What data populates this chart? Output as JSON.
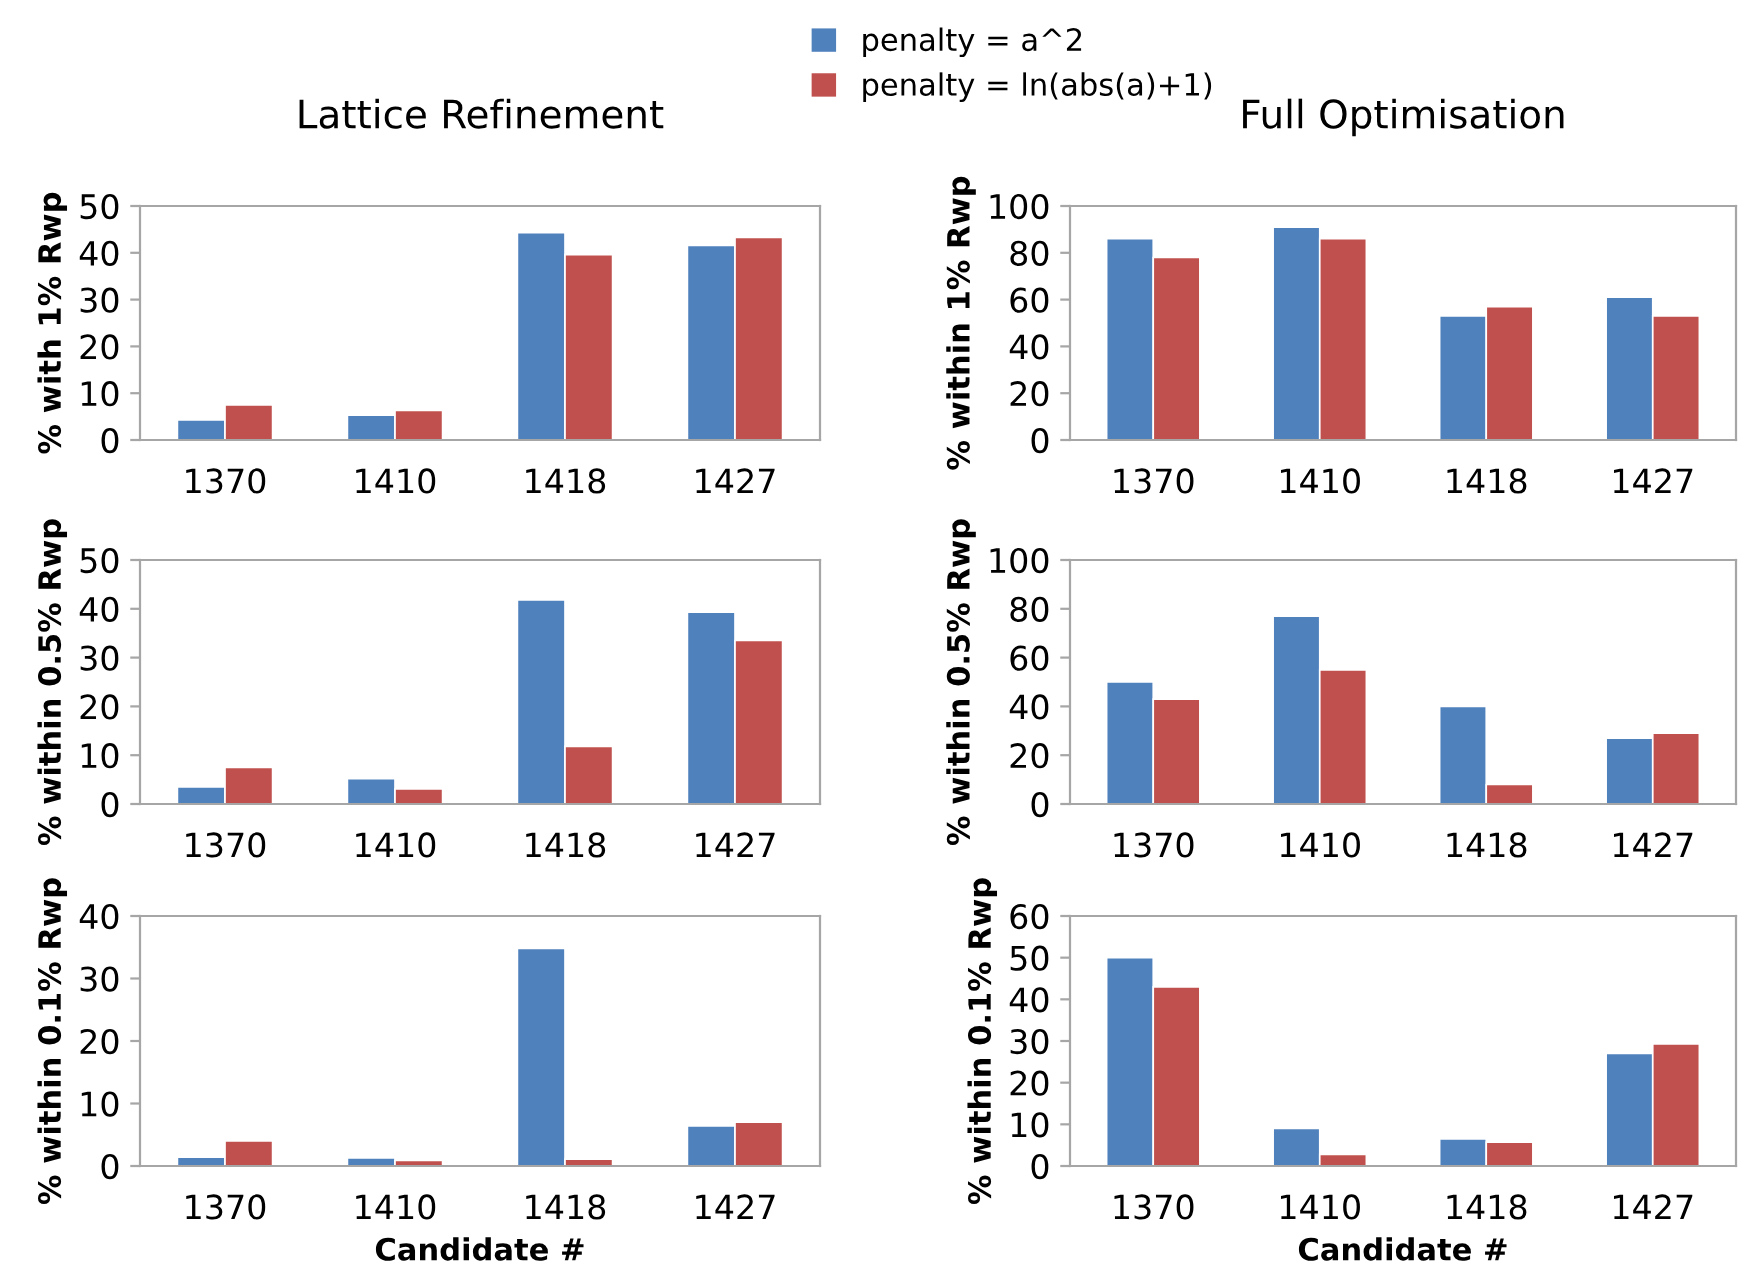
{
  "chart_data": [
    {
      "type": "bar",
      "title": "Lattice Refinement",
      "ylabel": "% with 1% Rwp",
      "categories": [
        "1370",
        "1410",
        "1418",
        "1427"
      ],
      "ylim": [
        0,
        50
      ],
      "yticks": [
        0,
        10,
        20,
        30,
        40,
        50
      ],
      "legend": "top",
      "grid": false,
      "series": [
        {
          "name": "penalty = a^2",
          "color": "#4f81bd",
          "values": [
            4.3,
            5.3,
            44.3,
            41.6
          ]
        },
        {
          "name": "penalty = ln(abs(a)+1)",
          "color": "#c0504d",
          "values": [
            7.5,
            6.3,
            39.6,
            43.3
          ]
        }
      ]
    },
    {
      "type": "bar",
      "title": "Full Optimisation",
      "ylabel": "% within 1% Rwp",
      "categories": [
        "1370",
        "1410",
        "1418",
        "1427"
      ],
      "ylim": [
        0,
        100
      ],
      "yticks": [
        0,
        20,
        40,
        60,
        80,
        100
      ],
      "grid": false,
      "series": [
        {
          "color": "#4f81bd",
          "values": [
            86,
            91,
            53,
            61
          ]
        },
        {
          "color": "#c0504d",
          "values": [
            78,
            86,
            57,
            53
          ]
        }
      ]
    },
    {
      "type": "bar",
      "ylabel": "% within 0.5% Rwp",
      "categories": [
        "1370",
        "1410",
        "1418",
        "1427"
      ],
      "ylim": [
        0,
        50
      ],
      "yticks": [
        0,
        10,
        20,
        30,
        40,
        50
      ],
      "grid": false,
      "series": [
        {
          "color": "#4f81bd",
          "values": [
            3.5,
            5.2,
            41.8,
            39.3
          ]
        },
        {
          "color": "#c0504d",
          "values": [
            7.5,
            3.1,
            11.8,
            33.5
          ]
        }
      ]
    },
    {
      "type": "bar",
      "ylabel": "% within 0.5% Rwp",
      "categories": [
        "1370",
        "1410",
        "1418",
        "1427"
      ],
      "ylim": [
        0,
        100
      ],
      "yticks": [
        0,
        20,
        40,
        60,
        80,
        100
      ],
      "grid": false,
      "series": [
        {
          "color": "#4f81bd",
          "values": [
            50,
            77,
            40,
            27
          ]
        },
        {
          "color": "#c0504d",
          "values": [
            43,
            55,
            8,
            29
          ]
        }
      ]
    },
    {
      "type": "bar",
      "ylabel": "% within 0.1% Rwp",
      "xlabel": "Candidate #",
      "categories": [
        "1370",
        "1410",
        "1418",
        "1427"
      ],
      "ylim": [
        0,
        40
      ],
      "yticks": [
        0,
        10,
        20,
        30,
        40
      ],
      "grid": false,
      "series": [
        {
          "color": "#4f81bd",
          "values": [
            1.4,
            1.3,
            34.8,
            6.4
          ]
        },
        {
          "color": "#c0504d",
          "values": [
            4.0,
            0.9,
            1.1,
            7.0
          ]
        }
      ]
    },
    {
      "type": "bar",
      "ylabel": "% within 0.1% Rwp",
      "xlabel": "Candidate #",
      "categories": [
        "1370",
        "1410",
        "1418",
        "1427"
      ],
      "ylim": [
        0,
        60
      ],
      "yticks": [
        0,
        10,
        20,
        30,
        40,
        50,
        60
      ],
      "grid": false,
      "series": [
        {
          "color": "#4f81bd",
          "values": [
            50,
            9,
            6.5,
            27
          ]
        },
        {
          "color": "#c0504d",
          "values": [
            43,
            2.8,
            5.7,
            29.3
          ]
        }
      ]
    }
  ]
}
